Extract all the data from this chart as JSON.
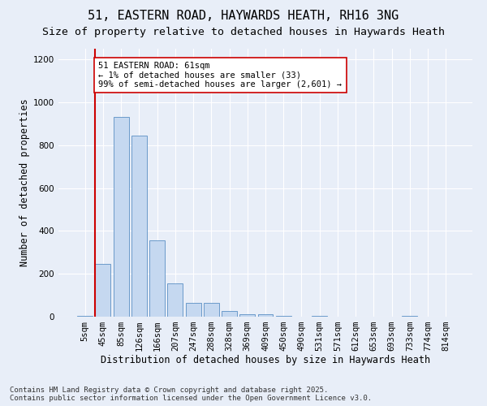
{
  "title_line1": "51, EASTERN ROAD, HAYWARDS HEATH, RH16 3NG",
  "title_line2": "Size of property relative to detached houses in Haywards Heath",
  "xlabel": "Distribution of detached houses by size in Haywards Heath",
  "ylabel": "Number of detached properties",
  "categories": [
    "5sqm",
    "45sqm",
    "85sqm",
    "126sqm",
    "166sqm",
    "207sqm",
    "247sqm",
    "288sqm",
    "328sqm",
    "369sqm",
    "409sqm",
    "450sqm",
    "490sqm",
    "531sqm",
    "571sqm",
    "612sqm",
    "653sqm",
    "693sqm",
    "733sqm",
    "774sqm",
    "814sqm"
  ],
  "values": [
    5,
    245,
    930,
    845,
    355,
    155,
    65,
    65,
    28,
    12,
    12,
    5,
    0,
    5,
    0,
    0,
    0,
    0,
    5,
    0,
    0
  ],
  "bar_color": "#c5d8f0",
  "bar_edge_color": "#5a8fc4",
  "vline_color": "#cc0000",
  "vline_position": 0.575,
  "annotation_text": "51 EASTERN ROAD: 61sqm\n← 1% of detached houses are smaller (33)\n99% of semi-detached houses are larger (2,601) →",
  "annotation_box_color": "#ffffff",
  "annotation_box_edge": "#cc0000",
  "ylim": [
    0,
    1250
  ],
  "yticks": [
    0,
    200,
    400,
    600,
    800,
    1000,
    1200
  ],
  "background_color": "#e8eef8",
  "grid_color": "#ffffff",
  "footer": "Contains HM Land Registry data © Crown copyright and database right 2025.\nContains public sector information licensed under the Open Government Licence v3.0.",
  "title_fontsize": 11,
  "subtitle_fontsize": 9.5,
  "axis_label_fontsize": 8.5,
  "tick_fontsize": 7.5,
  "annotation_fontsize": 7.5,
  "footer_fontsize": 6.5
}
